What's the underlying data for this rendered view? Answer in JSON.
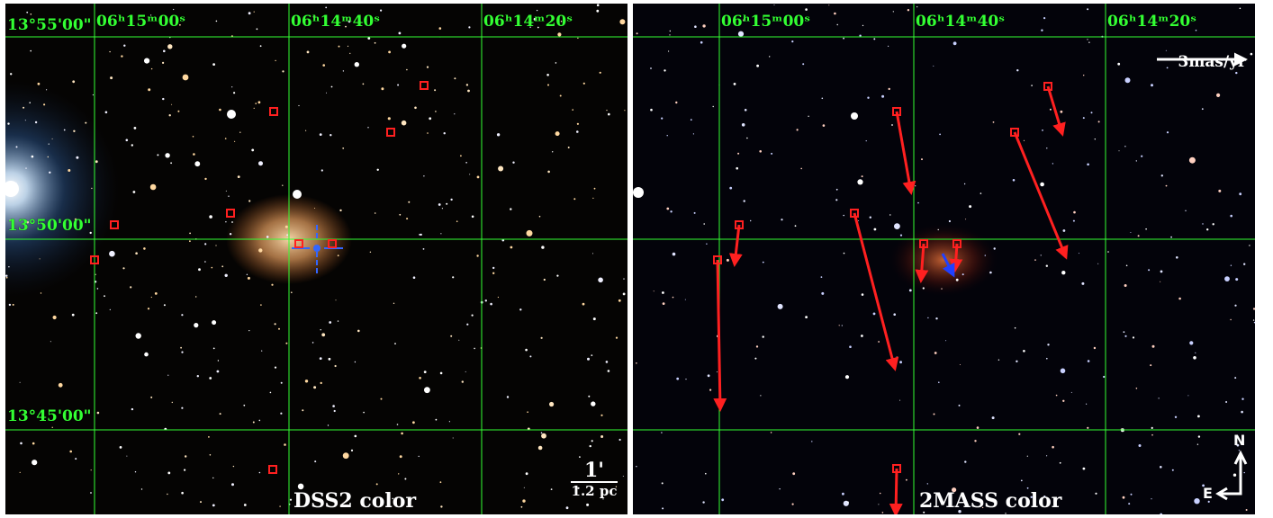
{
  "left_panel": {
    "title": "DSS2 color",
    "dec_labels": [
      "13°55'00\"",
      "13°50'00\"",
      "13°45'00\""
    ],
    "ra_labels": [
      "06ʰ15ᵐ00ˢ",
      "06ʰ14ᵐ40ˢ",
      "06ʰ14ᵐ20ˢ"
    ],
    "scale_bar": {
      "angle": "1'",
      "distance": "1.2 pc"
    }
  },
  "right_panel": {
    "title": "2MASS color",
    "ra_labels": [
      "06ʰ15ᵐ00ˢ",
      "06ʰ14ᵐ40ˢ",
      "06ʰ14ᵐ20ˢ"
    ],
    "proper_motion_scale": "3mas/yr",
    "compass": {
      "north": "N",
      "east": "E"
    }
  },
  "colors": {
    "grid": "#33ff33",
    "marker": "#ff2020",
    "arrow": "#ff2020",
    "highlight_arrow": "#2040ff",
    "crosshair": "#3366ff",
    "text": "#ffffff"
  }
}
